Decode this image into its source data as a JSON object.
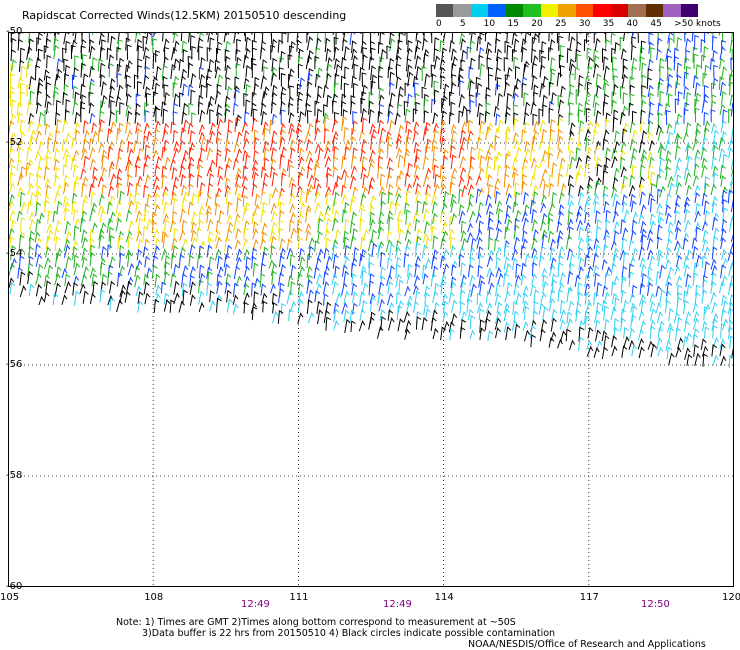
{
  "title": "Rapidscat Corrected Winds(12.5KM) 20150510 descending",
  "legend": {
    "unit": "knots",
    "labels": [
      "0",
      "5",
      "10",
      "15",
      "20",
      "25",
      "30",
      "35",
      "40",
      "45",
      ">50 knots"
    ],
    "colors": [
      "#555555",
      "#9a9a9a",
      "#00d0f0",
      "#0060ff",
      "#008800",
      "#20c020",
      "#f0f000",
      "#f0a000",
      "#ff5000",
      "#ff0000",
      "#d80000",
      "#a07050",
      "#603000",
      "#a060c0",
      "#400070"
    ]
  },
  "lat_labels": [
    "-50",
    "-52",
    "-54",
    "-56",
    "-58",
    "-60"
  ],
  "lon_labels": [
    "105",
    "108",
    "111",
    "114",
    "117",
    "120"
  ],
  "times": [
    "12:49",
    "12:49",
    "12:50"
  ],
  "notes": {
    "line1": "Note: 1) Times are GMT 2)Times along bottom correspond to measurement at ~50S",
    "line2": "3)Data buffer is 22 hrs from 20150510 4) Black circles indicate possible contamination",
    "credit": "NOAA/NESDIS/Office of Research and Applications"
  },
  "map": {
    "lat_range": [
      -60,
      -50
    ],
    "lon_range": [
      105,
      120
    ],
    "colors": {
      "black": "#000000",
      "blue": "#1040ff",
      "cyan": "#30d0f0",
      "green": "#20b020",
      "yellow": "#f0e000",
      "orange": "#f09000",
      "red": "#ff2000"
    }
  }
}
